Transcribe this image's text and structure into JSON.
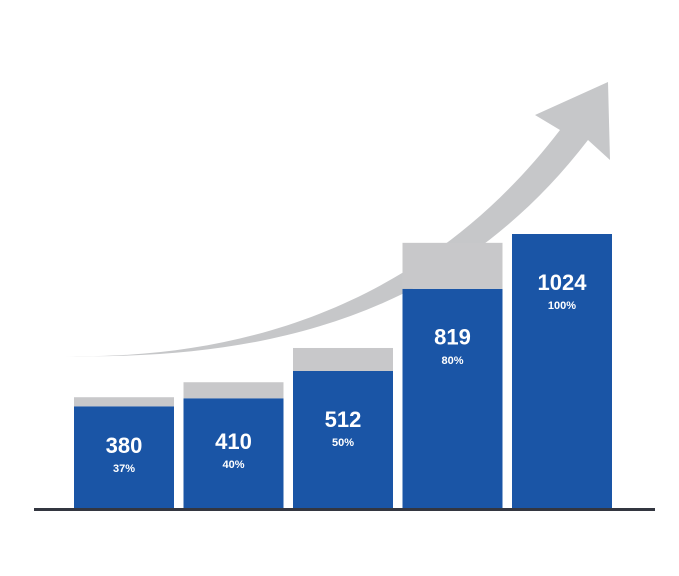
{
  "chart_data": {
    "type": "bar",
    "categories": [
      null,
      null,
      null,
      null,
      null
    ],
    "series": [
      {
        "color": "#1a55a6",
        "values": [
          380,
          410,
          512,
          819,
          1024
        ]
      },
      {
        "color": "#c8c8ca",
        "values": [
          34,
          60,
          86,
          172,
          0
        ]
      }
    ],
    "percent_labels": [
      "37%",
      "40%",
      "50%",
      "80%",
      "100%"
    ],
    "ylim": [
      0,
      1024
    ]
  }
}
